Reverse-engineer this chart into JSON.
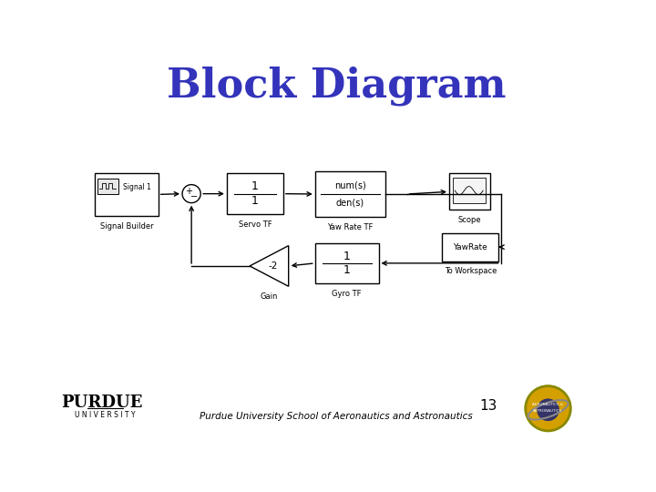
{
  "title": "Block Diagram",
  "title_color": "#3333BB",
  "title_fontsize": 32,
  "background_color": "#FFFFFF",
  "footer_text": "Purdue University School of Aeronautics and Astronautics",
  "slide_number": "13",
  "lw": 1.0
}
